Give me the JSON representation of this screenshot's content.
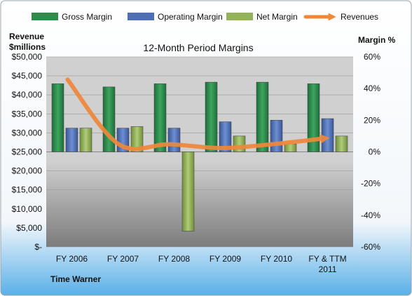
{
  "chart_data": {
    "type": "bar",
    "title": "12-Month Period Margins",
    "company": "Time Warner",
    "y_left_label_line1": "Revenue",
    "y_left_label_line2": "$millions",
    "y_right_label": "Margin %",
    "categories": [
      "FY 2006",
      "FY 2007",
      "FY 2008",
      "FY 2009",
      "FY 2010",
      "FY & TTM 2011"
    ],
    "y_left_ticks": [
      "$50,000",
      "$45,000",
      "$40,000",
      "$35,000",
      "$30,000",
      "$25,000",
      "$20,000",
      "$15,000",
      "$10,000",
      "$5,000",
      "$-"
    ],
    "y_right_ticks": [
      "60%",
      "40%",
      "20%",
      "0%",
      "-20%",
      "-40%",
      "-60%"
    ],
    "ylim_left": [
      0,
      50000
    ],
    "ylim_right": [
      -60,
      60
    ],
    "legend_position": "top",
    "grid": true,
    "series": [
      {
        "name": "Gross Margin",
        "kind": "bar",
        "color": "#2E8B4A",
        "values": [
          43,
          41,
          43,
          44,
          44,
          43
        ]
      },
      {
        "name": "Operating Margin",
        "kind": "bar",
        "color": "#4F6FB3",
        "values": [
          15,
          15,
          15,
          19,
          20,
          21
        ]
      },
      {
        "name": "Net Margin",
        "kind": "bar",
        "color": "#93B35B",
        "values": [
          15,
          16,
          -50,
          10,
          5,
          10
        ]
      },
      {
        "name": "Revenues",
        "kind": "line",
        "color": "#F0883A",
        "values": [
          44000,
          27000,
          27000,
          26000,
          27000,
          28500
        ]
      }
    ]
  }
}
